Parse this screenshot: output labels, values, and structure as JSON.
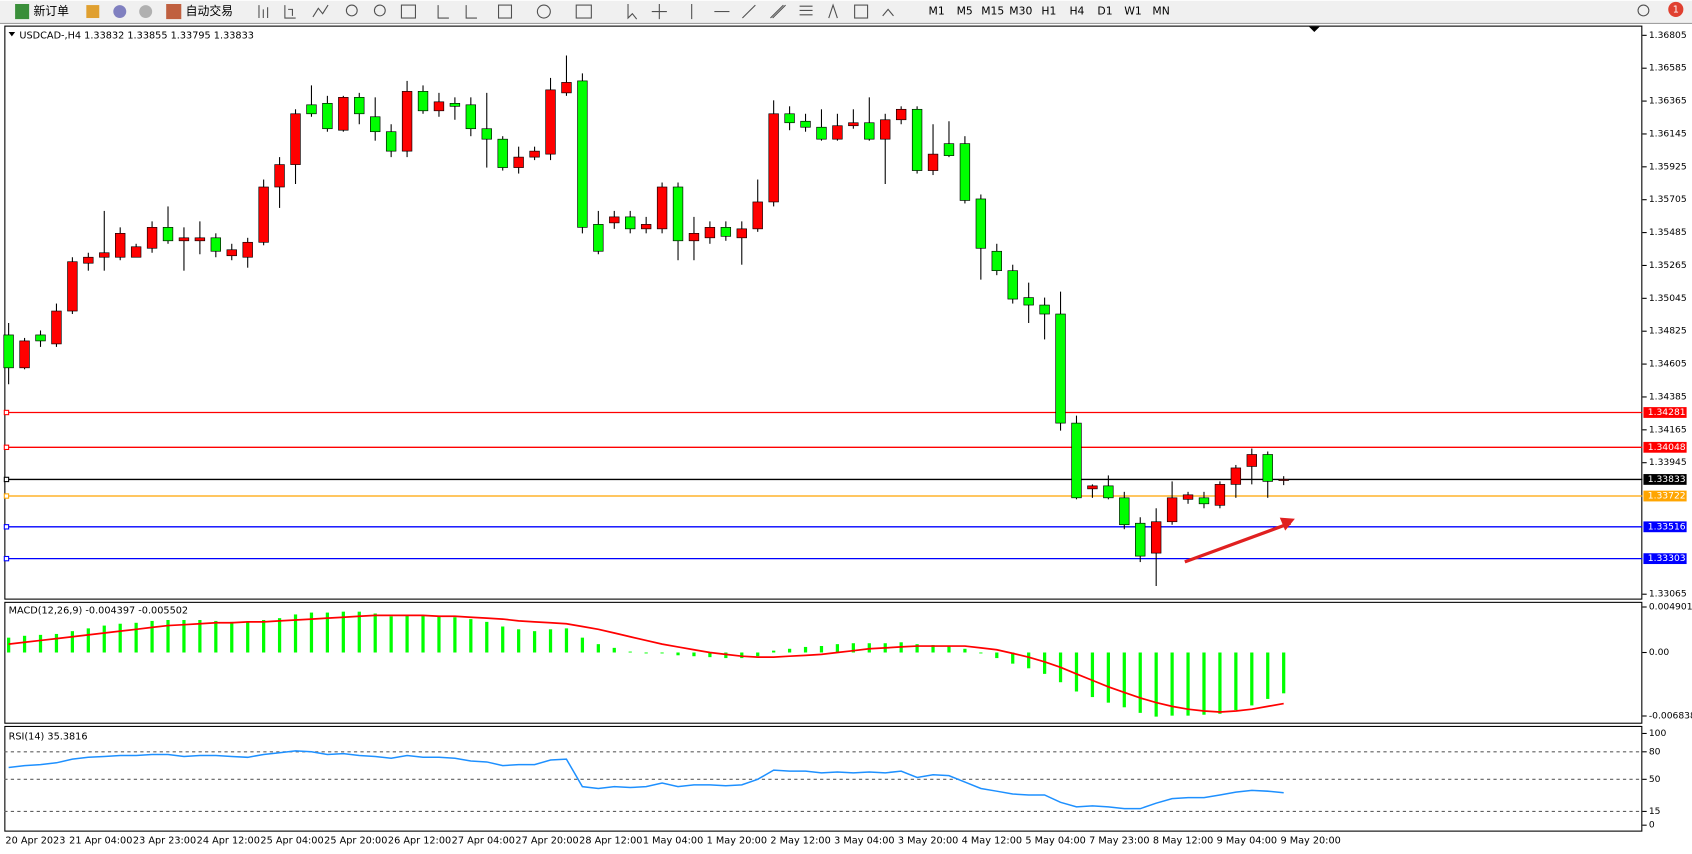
{
  "toolbar": {
    "new_order": "新订单",
    "auto_trading": "自动交易",
    "timeframes": [
      "M1",
      "M5",
      "M15",
      "M30",
      "H1",
      "H4",
      "D1",
      "W1",
      "MN"
    ],
    "badge": "1"
  },
  "chart_data": [
    {
      "type": "candlestick",
      "title": "USDCAD-,H4  1.33832 1.33855 1.33795 1.33833",
      "categories": [
        "20 Apr 2023",
        null,
        null,
        null,
        "21 Apr 04:00",
        null,
        null,
        null,
        "23 Apr 23:00",
        null,
        null,
        null,
        "24 Apr 12:00",
        null,
        null,
        null,
        "25 Apr 04:00",
        null,
        null,
        null,
        "25 Apr 20:00",
        null,
        null,
        null,
        "26 Apr 12:00",
        null,
        null,
        null,
        "27 Apr 04:00",
        null,
        null,
        null,
        "27 Apr 20:00",
        null,
        null,
        null,
        "28 Apr 12:00",
        null,
        null,
        null,
        "1 May 04:00",
        null,
        null,
        null,
        "1 May 20:00",
        null,
        null,
        null,
        "2 May 12:00",
        null,
        null,
        null,
        "3 May 04:00",
        null,
        null,
        null,
        "3 May 20:00",
        null,
        null,
        null,
        "4 May 12:00",
        null,
        null,
        null,
        "5 May 04:00",
        null,
        null,
        null,
        "7 May 23:00",
        null,
        null,
        null,
        "8 May 12:00",
        null,
        null,
        null,
        "9 May 04:00",
        null,
        null,
        null,
        "9 May 20:00"
      ],
      "open": [
        1.348,
        1.3458,
        1.348,
        1.3474,
        1.3496,
        1.3528,
        1.3532,
        1.3532,
        1.3532,
        1.3538,
        1.3552,
        1.3543,
        1.3543,
        1.3545,
        1.3533,
        1.3532,
        1.3542,
        1.3579,
        1.3594,
        1.3634,
        1.3635,
        1.3617,
        1.3639,
        1.3626,
        1.3616,
        1.3603,
        1.3643,
        1.363,
        1.3635,
        1.3634,
        1.3618,
        1.3611,
        1.3592,
        1.3599,
        1.3601,
        1.3642,
        1.365,
        1.3554,
        1.3555,
        1.3559,
        1.3551,
        1.3551,
        1.3579,
        1.3543,
        1.3545,
        1.3552,
        1.3545,
        1.3551,
        1.3569,
        1.3628,
        1.3623,
        1.3619,
        1.3611,
        1.362,
        1.3622,
        1.3611,
        1.3624,
        1.3631,
        1.359,
        1.3608,
        1.3608,
        1.3571,
        1.3536,
        1.3523,
        1.3505,
        1.35,
        1.3494,
        1.3421,
        1.3377,
        1.3379,
        1.3371,
        1.3354,
        1.3334,
        1.3355,
        1.337,
        1.3371,
        1.3366,
        1.338,
        1.3392,
        1.34,
        1.33832
      ],
      "high": [
        1.3488,
        1.3478,
        1.3483,
        1.3501,
        1.3532,
        1.3535,
        1.3563,
        1.3552,
        1.3541,
        1.3556,
        1.3566,
        1.3552,
        1.3556,
        1.3548,
        1.3541,
        1.3545,
        1.3584,
        1.3599,
        1.3631,
        1.3647,
        1.364,
        1.364,
        1.3642,
        1.3639,
        1.3621,
        1.365,
        1.3647,
        1.3642,
        1.3639,
        1.3639,
        1.3642,
        1.3613,
        1.3606,
        1.3606,
        1.3652,
        1.3667,
        1.3655,
        1.3563,
        1.3563,
        1.3563,
        1.3559,
        1.3582,
        1.3582,
        1.3559,
        1.3556,
        1.3556,
        1.3556,
        1.3584,
        1.3637,
        1.3633,
        1.3628,
        1.3631,
        1.3628,
        1.3631,
        1.3639,
        1.3628,
        1.3633,
        1.3633,
        1.3621,
        1.3623,
        1.3613,
        1.3574,
        1.3541,
        1.3527,
        1.3515,
        1.3505,
        1.3509,
        1.3426,
        1.338,
        1.3386,
        1.3375,
        1.3358,
        1.3364,
        1.3382,
        1.3375,
        1.3375,
        1.3382,
        1.3393,
        1.3404,
        1.3402,
        1.33855
      ],
      "low": [
        1.3447,
        1.3457,
        1.3472,
        1.3472,
        1.3494,
        1.3523,
        1.3523,
        1.353,
        1.3532,
        1.3535,
        1.3541,
        1.3523,
        1.3534,
        1.3532,
        1.353,
        1.3525,
        1.354,
        1.3565,
        1.3581,
        1.3626,
        1.3616,
        1.3616,
        1.3621,
        1.361,
        1.3599,
        1.3599,
        1.3628,
        1.3626,
        1.3624,
        1.3613,
        1.3592,
        1.359,
        1.3588,
        1.3597,
        1.3597,
        1.364,
        1.3548,
        1.3534,
        1.3551,
        1.3548,
        1.3548,
        1.3548,
        1.353,
        1.353,
        1.3541,
        1.3543,
        1.3527,
        1.3549,
        1.3566,
        1.3617,
        1.3616,
        1.361,
        1.361,
        1.3618,
        1.361,
        1.3581,
        1.3621,
        1.3588,
        1.3587,
        1.3599,
        1.3568,
        1.3517,
        1.352,
        1.3501,
        1.3488,
        1.3477,
        1.3416,
        1.337,
        1.3371,
        1.337,
        1.335,
        1.3328,
        1.3312,
        1.3353,
        1.3367,
        1.3364,
        1.3364,
        1.3371,
        1.338,
        1.3371,
        1.33795
      ],
      "close": [
        1.3458,
        1.3476,
        1.3476,
        1.3496,
        1.3529,
        1.3532,
        1.3535,
        1.3548,
        1.3539,
        1.3552,
        1.3543,
        1.3545,
        1.3545,
        1.3536,
        1.3537,
        1.3542,
        1.3579,
        1.3594,
        1.3628,
        1.3628,
        1.3618,
        1.3639,
        1.3628,
        1.3616,
        1.3603,
        1.3643,
        1.363,
        1.3636,
        1.3633,
        1.3618,
        1.3611,
        1.3592,
        1.3599,
        1.3603,
        1.3644,
        1.3649,
        1.3552,
        1.3536,
        1.3559,
        1.3551,
        1.3554,
        1.3579,
        1.3543,
        1.3548,
        1.3552,
        1.3546,
        1.3551,
        1.3569,
        1.3628,
        1.3622,
        1.3619,
        1.3611,
        1.362,
        1.3622,
        1.3611,
        1.3624,
        1.3631,
        1.359,
        1.3601,
        1.36,
        1.357,
        1.3538,
        1.3523,
        1.3504,
        1.35,
        1.3494,
        1.3421,
        1.3371,
        1.3379,
        1.3371,
        1.3353,
        1.3332,
        1.3355,
        1.3371,
        1.3373,
        1.3367,
        1.338,
        1.3391,
        1.34,
        1.3382,
        1.33833
      ],
      "up_color": "#ff0000",
      "down_color": "#00ff00",
      "ylim": [
        1.33043,
        1.36863
      ],
      "yticks": [
        1.36805,
        1.36585,
        1.36365,
        1.36145,
        1.35925,
        1.35705,
        1.35485,
        1.35265,
        1.35045,
        1.34825,
        1.34605,
        1.34385,
        1.34165,
        1.33945,
        1.33065
      ],
      "levels": [
        {
          "value": 1.34281,
          "color": "#ff0000"
        },
        {
          "value": 1.34048,
          "color": "#ff0000"
        },
        {
          "value": 1.33833,
          "color": "#000000"
        },
        {
          "value": 1.33722,
          "color": "#ffa500"
        },
        {
          "value": 1.33516,
          "color": "#0000ff"
        },
        {
          "value": 1.33303,
          "color": "#0000ff"
        }
      ]
    },
    {
      "type": "macd",
      "title": "MACD(12,26,9) -0.004397 -0.005502",
      "histogram": [
        0.0016,
        0.0018,
        0.0019,
        0.002,
        0.0023,
        0.0026,
        0.0029,
        0.0031,
        0.0032,
        0.0034,
        0.0035,
        0.0035,
        0.0035,
        0.0034,
        0.0033,
        0.0033,
        0.0035,
        0.0037,
        0.0041,
        0.0043,
        0.0043,
        0.0044,
        0.0044,
        0.0042,
        0.0039,
        0.004,
        0.004,
        0.0039,
        0.0038,
        0.0036,
        0.0033,
        0.0028,
        0.0025,
        0.0023,
        0.0025,
        0.0026,
        0.0016,
        0.0009,
        0.0005,
        0.0001,
        -0.0001,
        -0.0001,
        -0.0003,
        -0.0004,
        -0.0005,
        -0.0006,
        -0.0006,
        -0.0004,
        0.0002,
        0.0004,
        0.0006,
        0.0007,
        0.0009,
        0.001,
        0.001,
        0.001,
        0.0011,
        0.0009,
        0.0008,
        0.0007,
        0.0004,
        -0.0001,
        -0.0006,
        -0.0012,
        -0.0017,
        -0.0023,
        -0.0032,
        -0.0042,
        -0.0048,
        -0.0054,
        -0.0059,
        -0.0065,
        -0.0069,
        -0.0068,
        -0.0068,
        -0.0067,
        -0.0066,
        -0.0062,
        -0.0057,
        -0.005,
        -0.004397
      ],
      "signal": [
        0.0009,
        0.0011,
        0.0013,
        0.0015,
        0.0017,
        0.0019,
        0.0021,
        0.0023,
        0.0025,
        0.0027,
        0.0029,
        0.003,
        0.0031,
        0.0032,
        0.0032,
        0.0033,
        0.0033,
        0.0034,
        0.0035,
        0.0036,
        0.0037,
        0.0038,
        0.0039,
        0.004,
        0.004,
        0.004,
        0.004,
        0.0039,
        0.0039,
        0.0038,
        0.0037,
        0.0036,
        0.0034,
        0.0033,
        0.0032,
        0.0031,
        0.0028,
        0.0025,
        0.0021,
        0.0017,
        0.0013,
        0.0009,
        0.0006,
        0.0003,
        0.0,
        -0.0002,
        -0.0004,
        -0.0005,
        -0.0005,
        -0.0004,
        -0.0003,
        -0.0002,
        0.0,
        0.0002,
        0.0004,
        0.0005,
        0.0006,
        0.0007,
        0.0007,
        0.0007,
        0.0007,
        0.0005,
        0.0003,
        -0.0001,
        -0.0005,
        -0.001,
        -0.0016,
        -0.0023,
        -0.003,
        -0.0037,
        -0.0043,
        -0.0049,
        -0.0054,
        -0.0058,
        -0.0061,
        -0.0063,
        -0.0064,
        -0.0063,
        -0.0061,
        -0.0058,
        -0.005502
      ],
      "histogram_color": "#00ff00",
      "signal_color": "#ff0000",
      "ylim": [
        -0.00744,
        0.00546
      ],
      "yticks": [
        0.004901,
        {
          "value": 0,
          "label": "0.00"
        },
        -0.006838
      ]
    },
    {
      "type": "line",
      "title": "RSI(14) 35.3816",
      "values": [
        63,
        65,
        66,
        68,
        72,
        74,
        75,
        76,
        76,
        77,
        77,
        75,
        76,
        76,
        75,
        74,
        77,
        79,
        81,
        80,
        77,
        78,
        76,
        75,
        73,
        76,
        74,
        74,
        73,
        70,
        69,
        65,
        66,
        66,
        71,
        72,
        42,
        40,
        42,
        41,
        42,
        46,
        42,
        44,
        44,
        43,
        44,
        50,
        60,
        59,
        59,
        57,
        58,
        57,
        58,
        57,
        59,
        52,
        55,
        54,
        47,
        40,
        37,
        34,
        33,
        33,
        25,
        20,
        21,
        20,
        18,
        18,
        24,
        29,
        30,
        30,
        33,
        36,
        38,
        37,
        35.3816
      ],
      "color": "#1e90ff",
      "ylim": [
        0,
        100
      ],
      "yticks": [
        100,
        80,
        50,
        15,
        0
      ],
      "levels": [
        80,
        50,
        15
      ]
    }
  ]
}
